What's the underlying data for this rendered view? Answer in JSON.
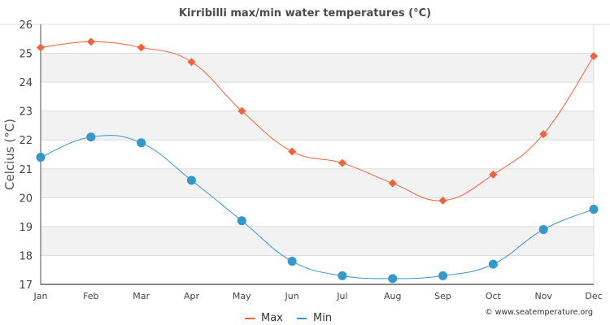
{
  "chart_data": {
    "type": "line",
    "title": "Kirribilli max/min water temperatures (°C)",
    "xlabel": "",
    "ylabel": "Celcius (°C)",
    "categories": [
      "Jan",
      "Feb",
      "Mar",
      "Apr",
      "May",
      "Jun",
      "Jul",
      "Aug",
      "Sep",
      "Oct",
      "Nov",
      "Dec"
    ],
    "ylim": [
      17,
      26
    ],
    "yticks": [
      17,
      18,
      19,
      20,
      21,
      22,
      23,
      24,
      25,
      26
    ],
    "grid": true,
    "legend_position": "bottom-center",
    "series": [
      {
        "name": "Max",
        "color": "#f4623a",
        "marker": "diamond",
        "values": [
          25.2,
          25.4,
          25.2,
          24.7,
          23.0,
          21.6,
          21.2,
          20.5,
          19.9,
          20.8,
          22.2,
          24.9
        ]
      },
      {
        "name": "Min",
        "color": "#3399cc",
        "marker": "circle",
        "values": [
          21.4,
          22.1,
          21.9,
          20.6,
          19.2,
          17.8,
          17.3,
          17.2,
          17.3,
          17.7,
          18.9,
          19.6
        ]
      }
    ],
    "credit": "© www.seatemperature.org"
  }
}
